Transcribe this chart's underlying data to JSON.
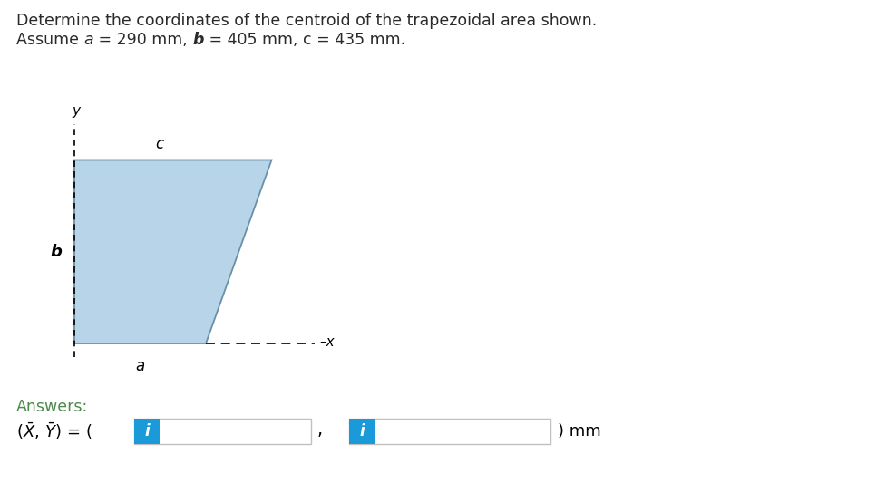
{
  "title_line1": "Determine the coordinates of the centroid of the trapezoidal area shown.",
  "title_line2_prefix": "Assume ",
  "title_line2_a": "a",
  "title_line2_mid1": " = 290 mm, ",
  "title_line2_b": "b",
  "title_line2_mid2": " = 405 mm, c = 435 mm.",
  "a_val": 290,
  "b_val": 405,
  "c_val": 435,
  "trap_fill": "#b8d4e8",
  "trap_edge": "#6a8fa8",
  "answers_label": "Answers:",
  "mm_label": ") mm",
  "input_box_color": "#1a9ad9",
  "input_box_border": "#c0c0c0",
  "background": "#ffffff",
  "title_color": "#2a2a2a",
  "answers_color": "#4a8a4a",
  "axis_color": "#555555"
}
